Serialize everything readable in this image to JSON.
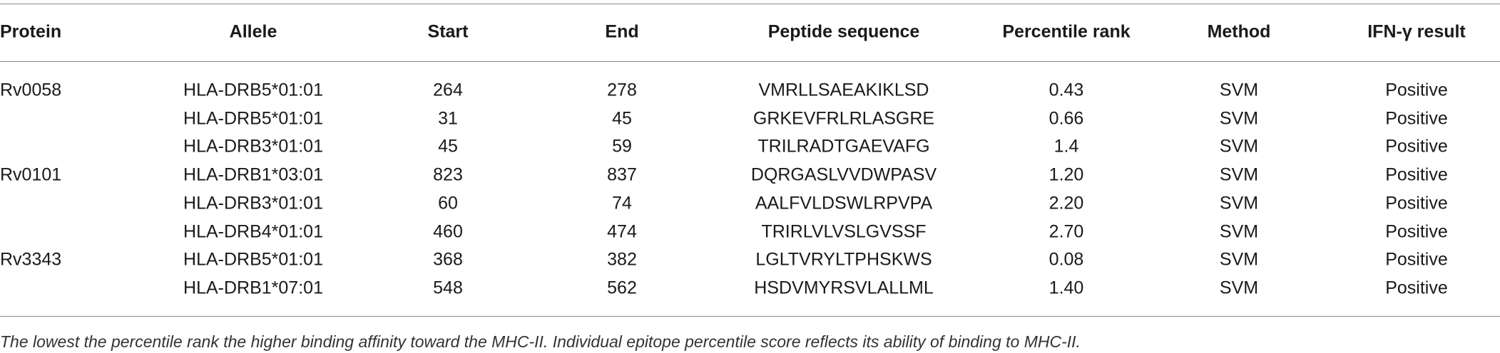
{
  "table": {
    "header": [
      "Protein",
      "Allele",
      "Start",
      "End",
      "Peptide sequence",
      "Percentile rank",
      "Method",
      "IFN-γ result"
    ],
    "groups": [
      {
        "protein": "Rv0058",
        "rows": [
          [
            "HLA-DRB5*01:01",
            264,
            278,
            "VMRLLSAEAKIKLSD",
            "0.43",
            "SVM",
            "Positive"
          ],
          [
            "HLA-DRB5*01:01",
            31,
            45,
            "GRKEVFRLRLASGRE",
            "0.66",
            "SVM",
            "Positive"
          ],
          [
            "HLA-DRB3*01:01",
            45,
            59,
            "TRILRADTGAEVAFG",
            "1.4",
            "SVM",
            "Positive"
          ]
        ]
      },
      {
        "protein": "Rv0101",
        "rows": [
          [
            "HLA-DRB1*03:01",
            823,
            837,
            "DQRGASLVVDWPASV",
            "1.20",
            "SVM",
            "Positive"
          ],
          [
            "HLA-DRB3*01:01",
            60,
            74,
            "AALFVLDSWLRPVPA",
            "2.20",
            "SVM",
            "Positive"
          ],
          [
            "HLA-DRB4*01:01",
            460,
            474,
            "TRIRLVLVSLGVSSF",
            "2.70",
            "SVM",
            "Positive"
          ]
        ]
      },
      {
        "protein": "Rv3343",
        "rows": [
          [
            "HLA-DRB5*01:01",
            368,
            382,
            "LGLTVRYLTPHSKWS",
            "0.08",
            "SVM",
            "Positive"
          ],
          [
            "HLA-DRB1*07:01",
            548,
            562,
            "HSDVMYRSVLALLML",
            "1.40",
            "SVM",
            "Positive"
          ]
        ]
      }
    ],
    "footnote": "The lowest the percentile rank the higher binding affinity toward the MHC-II. Individual epitope percentile score reflects its ability of binding to MHC-II."
  }
}
